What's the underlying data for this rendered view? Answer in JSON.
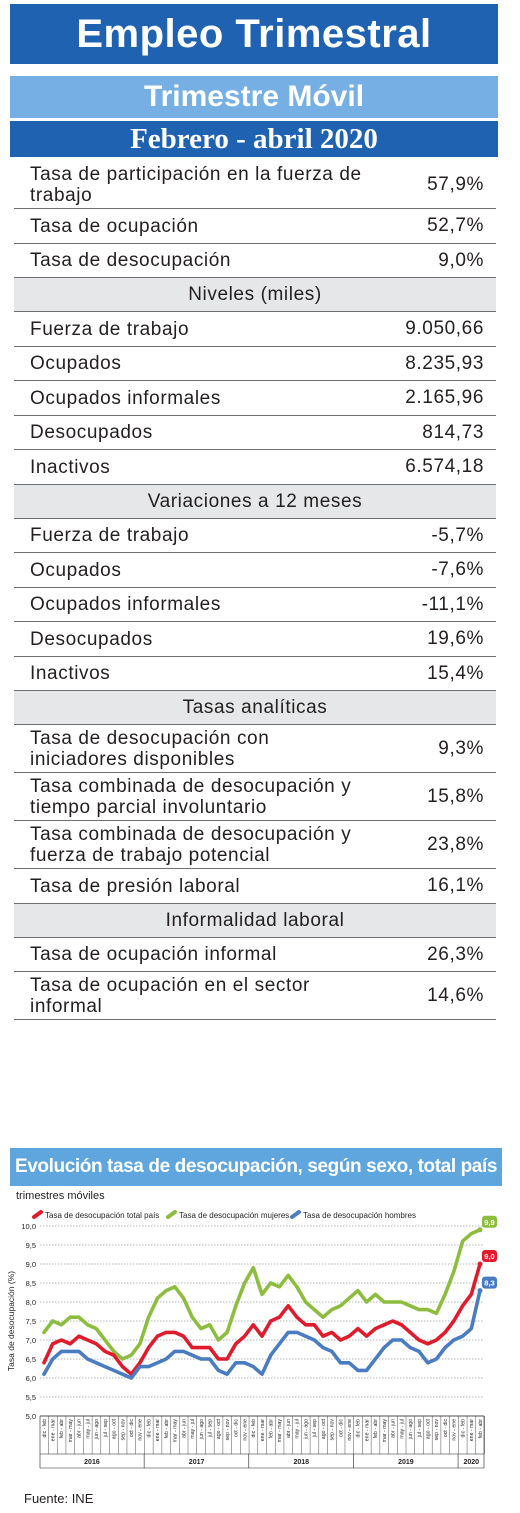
{
  "header": {
    "title": "Empleo Trimestral",
    "subtitle": "Trimestre Móvil",
    "period": "Febrero - abril 2020"
  },
  "table": {
    "top_rows": [
      {
        "label": "Tasa de participación en la fuerza de trabajo",
        "value": "57,9%"
      },
      {
        "label": "Tasa de ocupación",
        "value": "52,7%"
      },
      {
        "label": "Tasa de desocupación",
        "value": "9,0%"
      }
    ],
    "sections": [
      {
        "title": "Niveles (miles)",
        "rows": [
          {
            "label": "Fuerza de trabajo",
            "value": "9.050,66"
          },
          {
            "label": "Ocupados",
            "value": "8.235,93"
          },
          {
            "label": "Ocupados informales",
            "value": "2.165,96"
          },
          {
            "label": "Desocupados",
            "value": "814,73"
          },
          {
            "label": "Inactivos",
            "value": "6.574,18"
          }
        ]
      },
      {
        "title": "Variaciones a 12 meses",
        "rows": [
          {
            "label": "Fuerza de trabajo",
            "value": "-5,7%"
          },
          {
            "label": "Ocupados",
            "value": "-7,6%"
          },
          {
            "label": "Ocupados informales",
            "value": "-11,1%"
          },
          {
            "label": "Desocupados",
            "value": "19,6%"
          },
          {
            "label": "Inactivos",
            "value": "15,4%"
          }
        ]
      },
      {
        "title": "Tasas analíticas",
        "rows": [
          {
            "label": "Tasa de desocupación con iniciadores disponibles",
            "value": "9,3%"
          },
          {
            "label": "Tasa combinada de desocupación y tiempo parcial involuntario",
            "value": "15,8%"
          },
          {
            "label": "Tasa combinada de desocupación y fuerza de trabajo potencial",
            "value": "23,8%"
          },
          {
            "label": "Tasa de presión laboral",
            "value": "16,1%"
          }
        ]
      },
      {
        "title": "Informalidad laboral",
        "rows": [
          {
            "label": "Tasa de ocupación informal",
            "value": "26,3%"
          },
          {
            "label": "Tasa de ocupación en el sector informal",
            "value": "14,6%"
          }
        ]
      }
    ]
  },
  "footer": {
    "source": "Fuente: INE"
  },
  "colors": {
    "total": "#e01b2c",
    "mujeres": "#8dbd3f",
    "hombres": "#4a7cc2",
    "band_dark": "#1f62b1",
    "band_light": "#76afe3"
  },
  "chart_data": {
    "type": "line",
    "title": "Evolución tasa de desocupación, según sexo, total país",
    "subtitle": "trimestres móviles",
    "ylabel": "Tasa de desocupación (%)",
    "xlabel": "",
    "ylim": [
      5.0,
      10.0
    ],
    "y_ticks": [
      "5,0",
      "5,5",
      "6,0",
      "6,5",
      "7,0",
      "7,5",
      "8,0",
      "8,5",
      "9,0",
      "9,5",
      "10,0"
    ],
    "grid": true,
    "legend_position": "top",
    "categories": [
      "dic - feb",
      "ene - mar",
      "feb - abr",
      "mar - may",
      "abr - jun",
      "may - jul",
      "jun - ago",
      "jul - sep",
      "ago - oct",
      "sep - nov",
      "oct - dic",
      "nov - ene",
      "dic - feb",
      "ene - mar",
      "feb - abr",
      "mar - may",
      "abr - jun",
      "may - jul",
      "jun - ago",
      "jul - sep",
      "ago - oct",
      "sep - nov",
      "oct - dic",
      "nov - ene",
      "dic - feb",
      "ene - mar",
      "feb - abr",
      "mar - may",
      "abr - jun",
      "may - jul",
      "jun - ago",
      "jul - sep",
      "ago - oct",
      "sep - nov",
      "oct - dic",
      "nov - ene",
      "dic - feb",
      "ene - mar",
      "feb - abr",
      "mar - may",
      "abr - jun",
      "may - jul",
      "jun - ago",
      "jul - sep",
      "ago - oct",
      "sep - nov",
      "oct - dic",
      "nov - ene",
      "dic - feb",
      "ene - mar",
      "feb - abr"
    ],
    "year_labels": [
      "2016",
      "2017",
      "2018",
      "2019",
      "2020"
    ],
    "year_spans": [
      [
        0,
        11
      ],
      [
        12,
        23
      ],
      [
        24,
        35
      ],
      [
        36,
        47
      ],
      [
        48,
        50
      ]
    ],
    "series": [
      {
        "name": "Tasa de desocupación total país",
        "color": "#e01b2c",
        "end_label": "9,0",
        "values": [
          6.4,
          6.9,
          7.0,
          6.9,
          7.1,
          7.0,
          6.9,
          6.7,
          6.6,
          6.3,
          6.1,
          6.4,
          6.8,
          7.1,
          7.2,
          7.2,
          7.1,
          6.8,
          6.8,
          6.8,
          6.5,
          6.5,
          6.9,
          7.1,
          7.4,
          7.1,
          7.5,
          7.6,
          7.9,
          7.6,
          7.4,
          7.4,
          7.1,
          7.2,
          7.0,
          7.1,
          7.3,
          7.1,
          7.3,
          7.4,
          7.5,
          7.4,
          7.2,
          7.0,
          6.9,
          7.0,
          7.2,
          7.5,
          7.9,
          8.2,
          9.0
        ]
      },
      {
        "name": "Tasa de desocupación mujeres",
        "color": "#8dbd3f",
        "end_label": "9,9",
        "values": [
          7.2,
          7.5,
          7.4,
          7.6,
          7.6,
          7.4,
          7.3,
          7.0,
          6.7,
          6.5,
          6.6,
          6.9,
          7.6,
          8.1,
          8.3,
          8.4,
          8.1,
          7.6,
          7.3,
          7.4,
          7.0,
          7.2,
          7.9,
          8.5,
          8.9,
          8.2,
          8.5,
          8.4,
          8.7,
          8.4,
          8.0,
          7.8,
          7.6,
          7.8,
          7.9,
          8.1,
          8.3,
          8.0,
          8.2,
          8.0,
          8.0,
          8.0,
          7.9,
          7.8,
          7.8,
          7.7,
          8.2,
          8.8,
          9.6,
          9.8,
          9.9
        ]
      },
      {
        "name": "Tasa de desocupación hombres",
        "color": "#4a7cc2",
        "end_label": "8,3",
        "values": [
          6.1,
          6.5,
          6.7,
          6.7,
          6.7,
          6.5,
          6.4,
          6.3,
          6.2,
          6.1,
          6.0,
          6.3,
          6.3,
          6.4,
          6.5,
          6.7,
          6.7,
          6.6,
          6.5,
          6.5,
          6.2,
          6.1,
          6.4,
          6.4,
          6.3,
          6.1,
          6.6,
          6.9,
          7.2,
          7.2,
          7.1,
          7.0,
          6.8,
          6.7,
          6.4,
          6.4,
          6.2,
          6.2,
          6.5,
          6.8,
          7.0,
          7.0,
          6.8,
          6.7,
          6.4,
          6.5,
          6.8,
          7.0,
          7.1,
          7.3,
          8.3
        ]
      }
    ]
  }
}
